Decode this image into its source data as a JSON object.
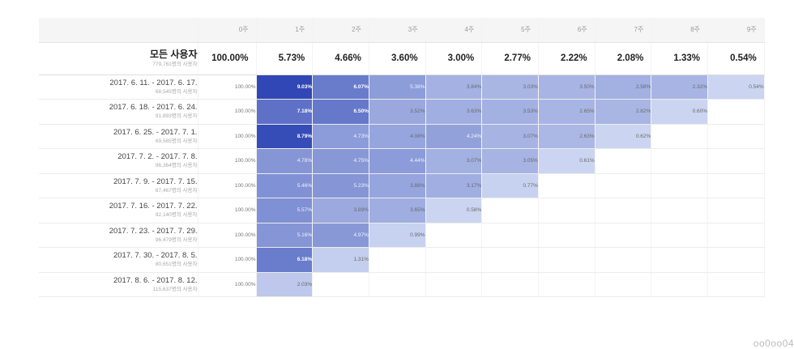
{
  "table": {
    "headers": [
      "0주",
      "1주",
      "2주",
      "3주",
      "4주",
      "5주",
      "6주",
      "7주",
      "8주",
      "9주"
    ],
    "total": {
      "label": "모든 사용자",
      "sublabel": "779,761명의 사용자",
      "values": [
        "100.00%",
        "5.73%",
        "4.66%",
        "3.60%",
        "3.00%",
        "2.77%",
        "2.22%",
        "2.08%",
        "1.33%",
        "0.54%"
      ]
    },
    "rows": [
      {
        "label": "2017. 6. 11. - 2017. 6. 17.",
        "sublabel": "68,545명의 사용자",
        "values": [
          "100.00%",
          "9.03%",
          "6.07%",
          "5.38%",
          "3.84%",
          "3.03%",
          "3.50%",
          "2.58%",
          "2.32%",
          "0.54%"
        ],
        "levels": [
          0,
          0.98,
          0.66,
          0.45,
          0.32,
          0.29,
          0.3,
          0.33,
          0.3,
          0.1
        ]
      },
      {
        "label": "2017. 6. 18. - 2017. 6. 24.",
        "sublabel": "91,893명의 사용자",
        "values": [
          "100.00%",
          "7.18%",
          "6.50%",
          "3.52%",
          "3.63%",
          "3.53%",
          "2.65%",
          "2.82%",
          "0.60%"
        ],
        "levels": [
          0,
          0.72,
          0.68,
          0.38,
          0.34,
          0.33,
          0.3,
          0.29,
          0.1
        ]
      },
      {
        "label": "2017. 6. 25. - 2017. 7. 1.",
        "sublabel": "69,585명의 사용자",
        "values": [
          "100.00%",
          "8.79%",
          "4.73%",
          "4.08%",
          "4.24%",
          "3.07%",
          "2.63%",
          "0.62%"
        ],
        "levels": [
          0,
          0.95,
          0.46,
          0.4,
          0.42,
          0.31,
          0.28,
          0.1
        ]
      },
      {
        "label": "2017. 7. 2. - 2017. 7. 8.",
        "sublabel": "96,364명의 사용자",
        "values": [
          "100.00%",
          "4.78%",
          "4.75%",
          "4.44%",
          "3.07%",
          "3.05%",
          "0.61%"
        ],
        "levels": [
          0,
          0.5,
          0.48,
          0.46,
          0.33,
          0.31,
          0.1
        ]
      },
      {
        "label": "2017. 7. 9. - 2017. 7. 15.",
        "sublabel": "67,467명의 사용자",
        "values": [
          "100.00%",
          "5.46%",
          "5.23%",
          "3.88%",
          "3.17%",
          "0.77%"
        ],
        "levels": [
          0,
          0.52,
          0.5,
          0.4,
          0.34,
          0.12
        ]
      },
      {
        "label": "2017. 7. 16. - 2017. 7. 22.",
        "sublabel": "92,140명의 사용자",
        "values": [
          "100.00%",
          "5.57%",
          "3.89%",
          "3.65%",
          "0.58%"
        ],
        "levels": [
          0,
          0.53,
          0.37,
          0.35,
          0.1
        ]
      },
      {
        "label": "2017. 7. 23. - 2017. 7. 29.",
        "sublabel": "96,479명의 사용자",
        "values": [
          "100.00%",
          "5.16%",
          "4.97%",
          "0.99%"
        ],
        "levels": [
          0,
          0.5,
          0.48,
          0.12
        ]
      },
      {
        "label": "2017. 7. 30. - 2017. 8. 5.",
        "sublabel": "80,651명의 사용자",
        "values": [
          "100.00%",
          "6.18%",
          "1.31%"
        ],
        "levels": [
          0,
          0.65,
          0.14
        ]
      },
      {
        "label": "2017. 8. 6. - 2017. 8. 12.",
        "sublabel": "115,637명의 사용자",
        "values": [
          "100.00%",
          "2.03%"
        ],
        "levels": [
          0,
          0.18
        ]
      }
    ]
  },
  "heat_colors": {
    "light": "#dce5f8",
    "dark": "#2d44b4",
    "empty": "#ffffff",
    "zero_column": "#ffffff"
  },
  "watermark": "oo0oo04"
}
